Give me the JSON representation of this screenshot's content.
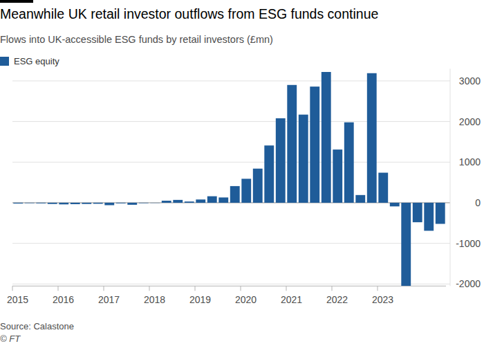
{
  "chart_data": {
    "type": "bar",
    "title": "Meanwhile UK retail investor outflows from ESG funds continue",
    "subtitle": "Flows into UK-accessible ESG funds by retail investors (£mn)",
    "source": "Source: Calastone",
    "credit": "© FT",
    "categories": [
      "2015",
      null,
      null,
      null,
      "2016",
      null,
      null,
      null,
      "2017",
      null,
      null,
      null,
      "2018",
      null,
      null,
      null,
      "2019",
      null,
      null,
      null,
      "2020",
      null,
      null,
      null,
      "2021",
      null,
      null,
      null,
      "2022",
      null,
      null,
      null,
      "2023",
      null,
      null,
      null,
      null,
      null
    ],
    "series": [
      {
        "name": "ESG equity",
        "color": "#1f5c99",
        "values": [
          -20,
          -10,
          -15,
          -30,
          -40,
          -35,
          -30,
          -25,
          -60,
          -15,
          -50,
          -10,
          -5,
          50,
          70,
          30,
          80,
          160,
          130,
          410,
          590,
          840,
          1410,
          2080,
          2900,
          2170,
          2860,
          3220,
          1310,
          1980,
          190,
          3190,
          740,
          -90,
          -2050,
          -480,
          -690,
          -520
        ]
      }
    ],
    "ylim": [
      -2050,
      3300
    ],
    "yticks": [
      -2000,
      -1000,
      0,
      1000,
      2000,
      3000
    ],
    "grid": true,
    "legend": "top-left"
  }
}
